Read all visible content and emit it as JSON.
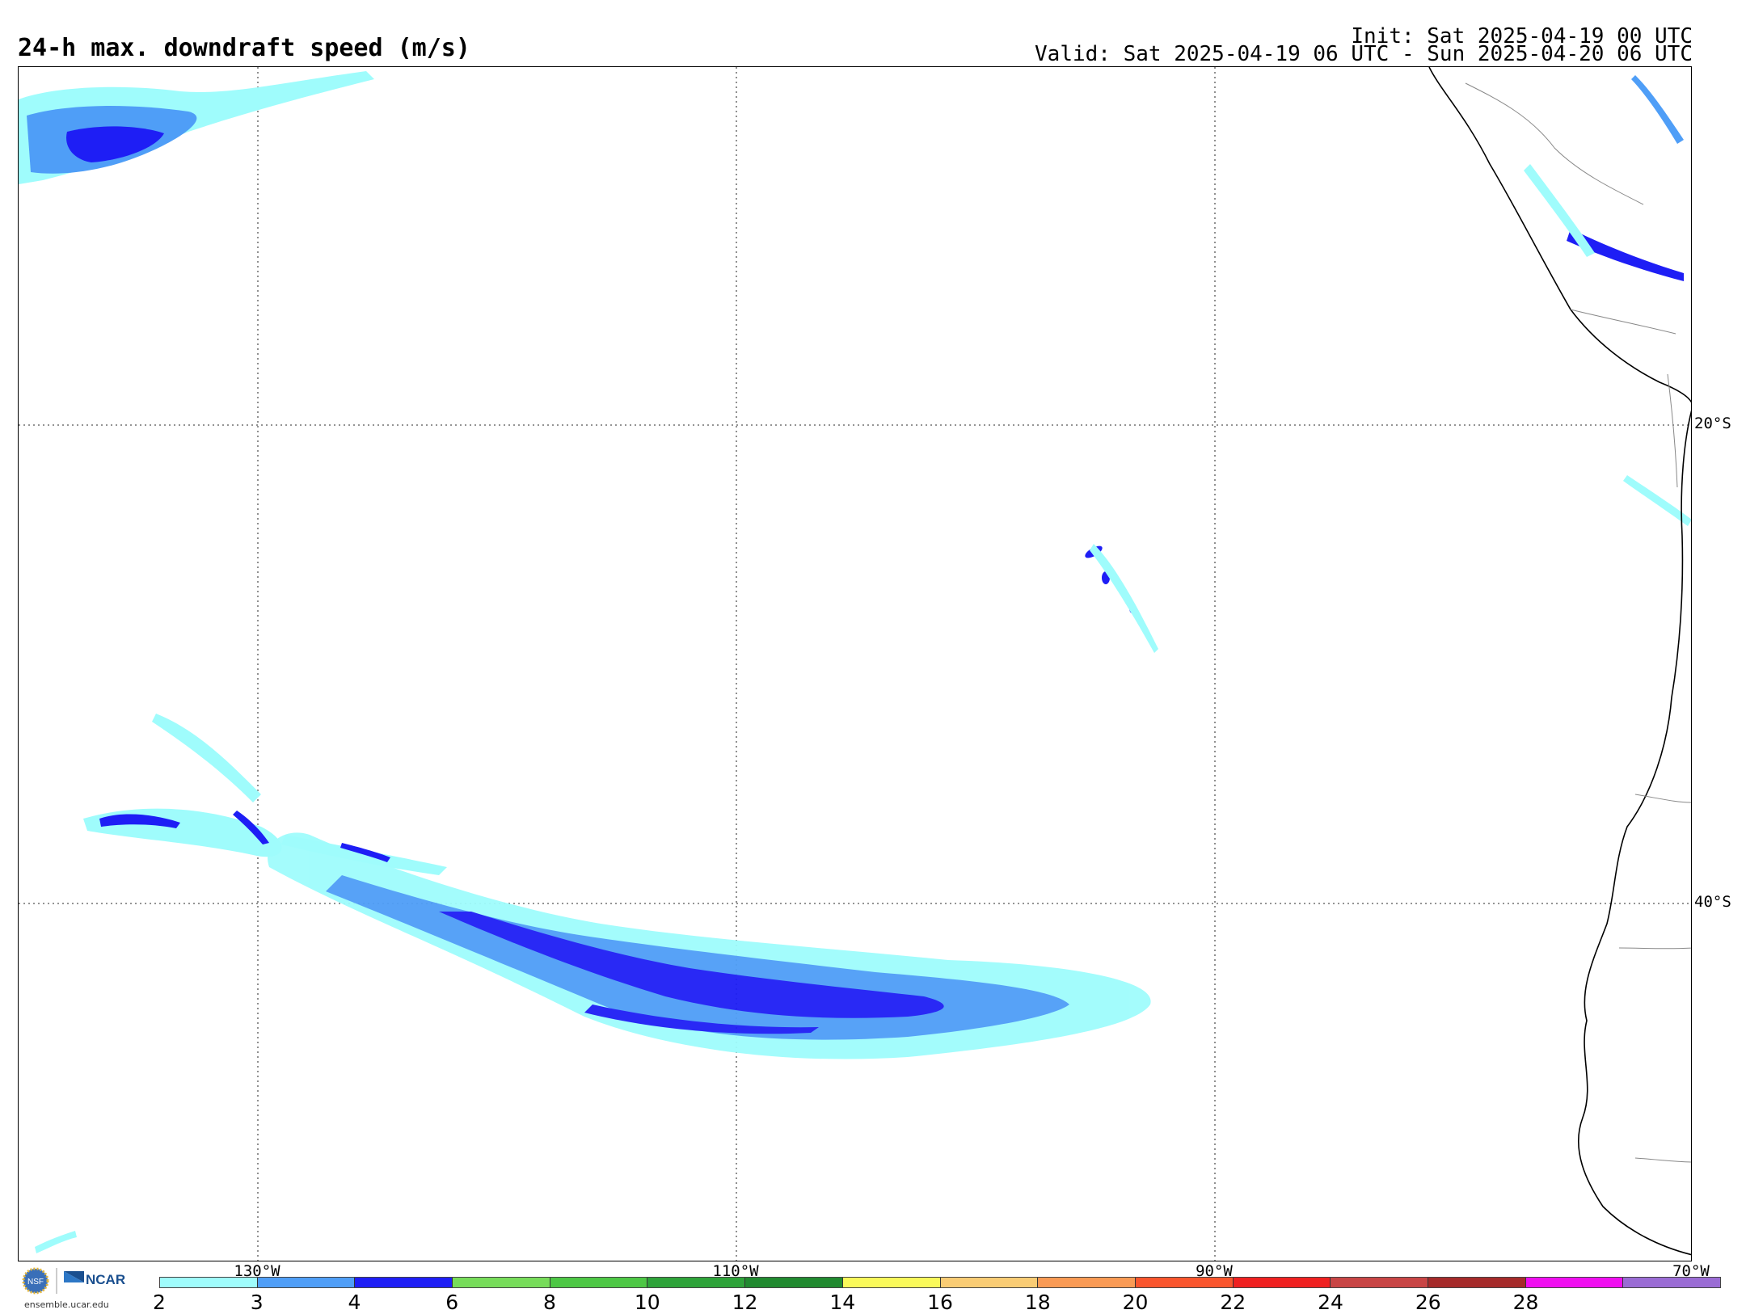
{
  "header": {
    "title": "24-h max. downdraft speed (m/s)",
    "init": "Init: Sat 2025-04-19 00 UTC",
    "valid": "Valid: Sat 2025-04-19 06 UTC - Sun 2025-04-20 06 UTC"
  },
  "map": {
    "lat_labels": [
      "20°S",
      "40°S"
    ],
    "lon_labels": [
      "130°W",
      "110°W",
      "90°W",
      "70°W"
    ]
  },
  "colorbar": {
    "tick_labels": [
      "2",
      "3",
      "4",
      "6",
      "8",
      "10",
      "12",
      "14",
      "16",
      "18",
      "20",
      "22",
      "24",
      "26",
      "28"
    ],
    "colors": [
      "#9ffcfc",
      "#4f9ef7",
      "#1e1ef5",
      "#77dc5a",
      "#4dc745",
      "#2ea33a",
      "#218a30",
      "#f9f95a",
      "#f9cc74",
      "#f99a54",
      "#f9552d",
      "#ef2020",
      "#c84545",
      "#a52a2a",
      "#f00ef0",
      "#9a6cd4"
    ]
  },
  "branding": {
    "logo_text": "NCAR",
    "url": "ensemble.ucar.edu"
  },
  "icons": [
    "nsf-logo-icon",
    "ncar-logo-icon"
  ]
}
